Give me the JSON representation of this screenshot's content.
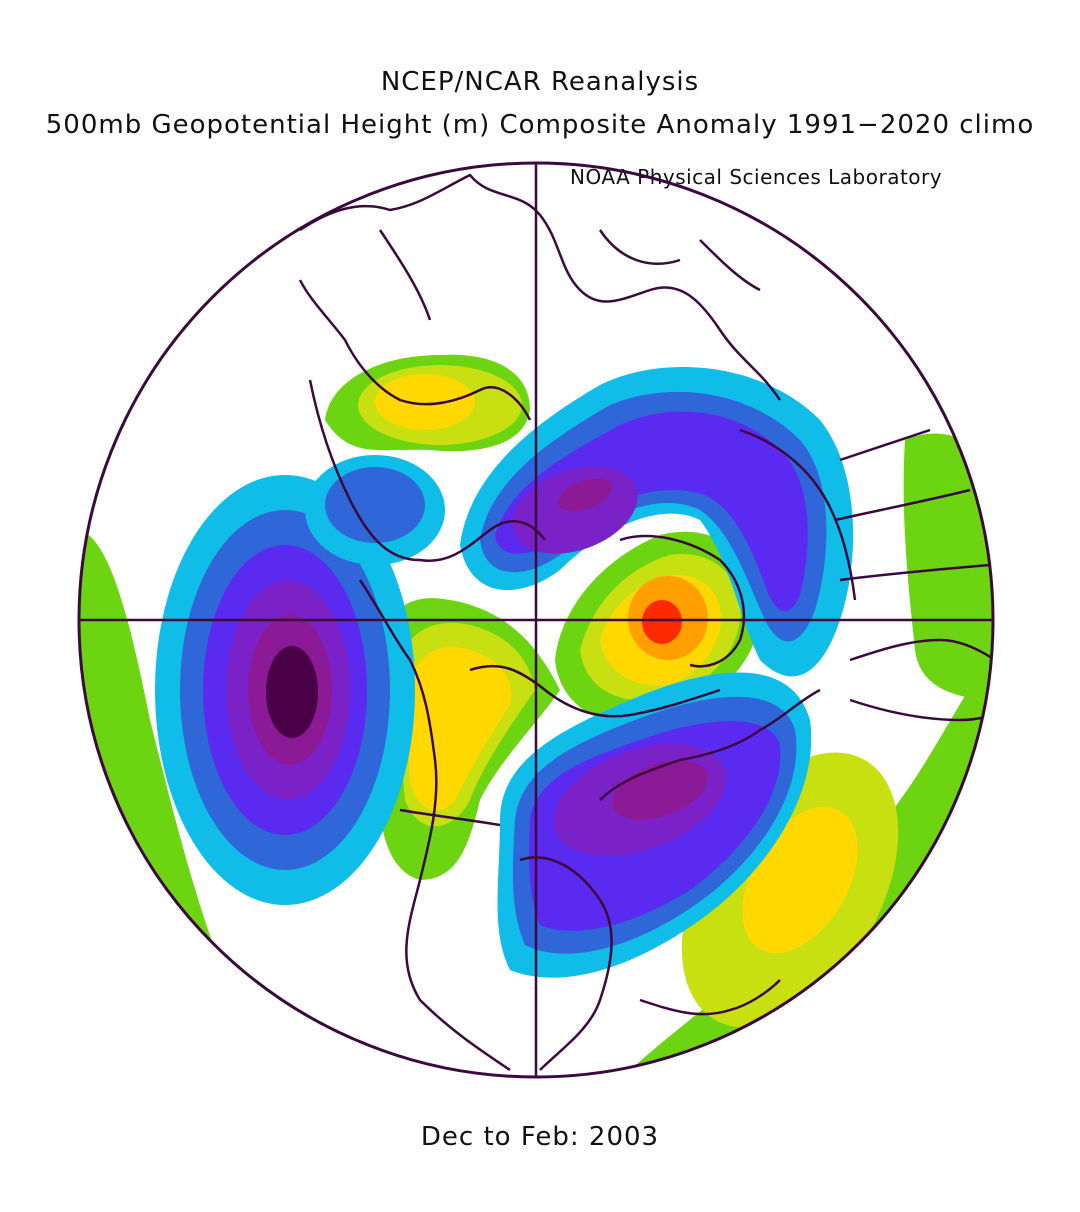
{
  "titles": {
    "line1": "NCEP/NCAR Reanalysis",
    "line2": "500mb Geopotential Height (m) Composite Anomaly 1991−2020 climo",
    "credit": "NOAA Physical Sciences Laboratory",
    "period": "Dec to Feb: 2003"
  },
  "map": {
    "projection": "north-polar-stereographic",
    "colors": {
      "line": "#3a0a3e",
      "deep_purple": "#4a0046",
      "magenta": "#8c1a96",
      "violet": "#7a22c8",
      "purple": "#5a2af0",
      "blue": "#2f66d8",
      "cyan": "#10bde8",
      "green": "#6cd410",
      "yellow_green": "#c8df12",
      "yellow": "#ffd800",
      "orange": "#ffa000",
      "red": "#ff2a00"
    }
  }
}
